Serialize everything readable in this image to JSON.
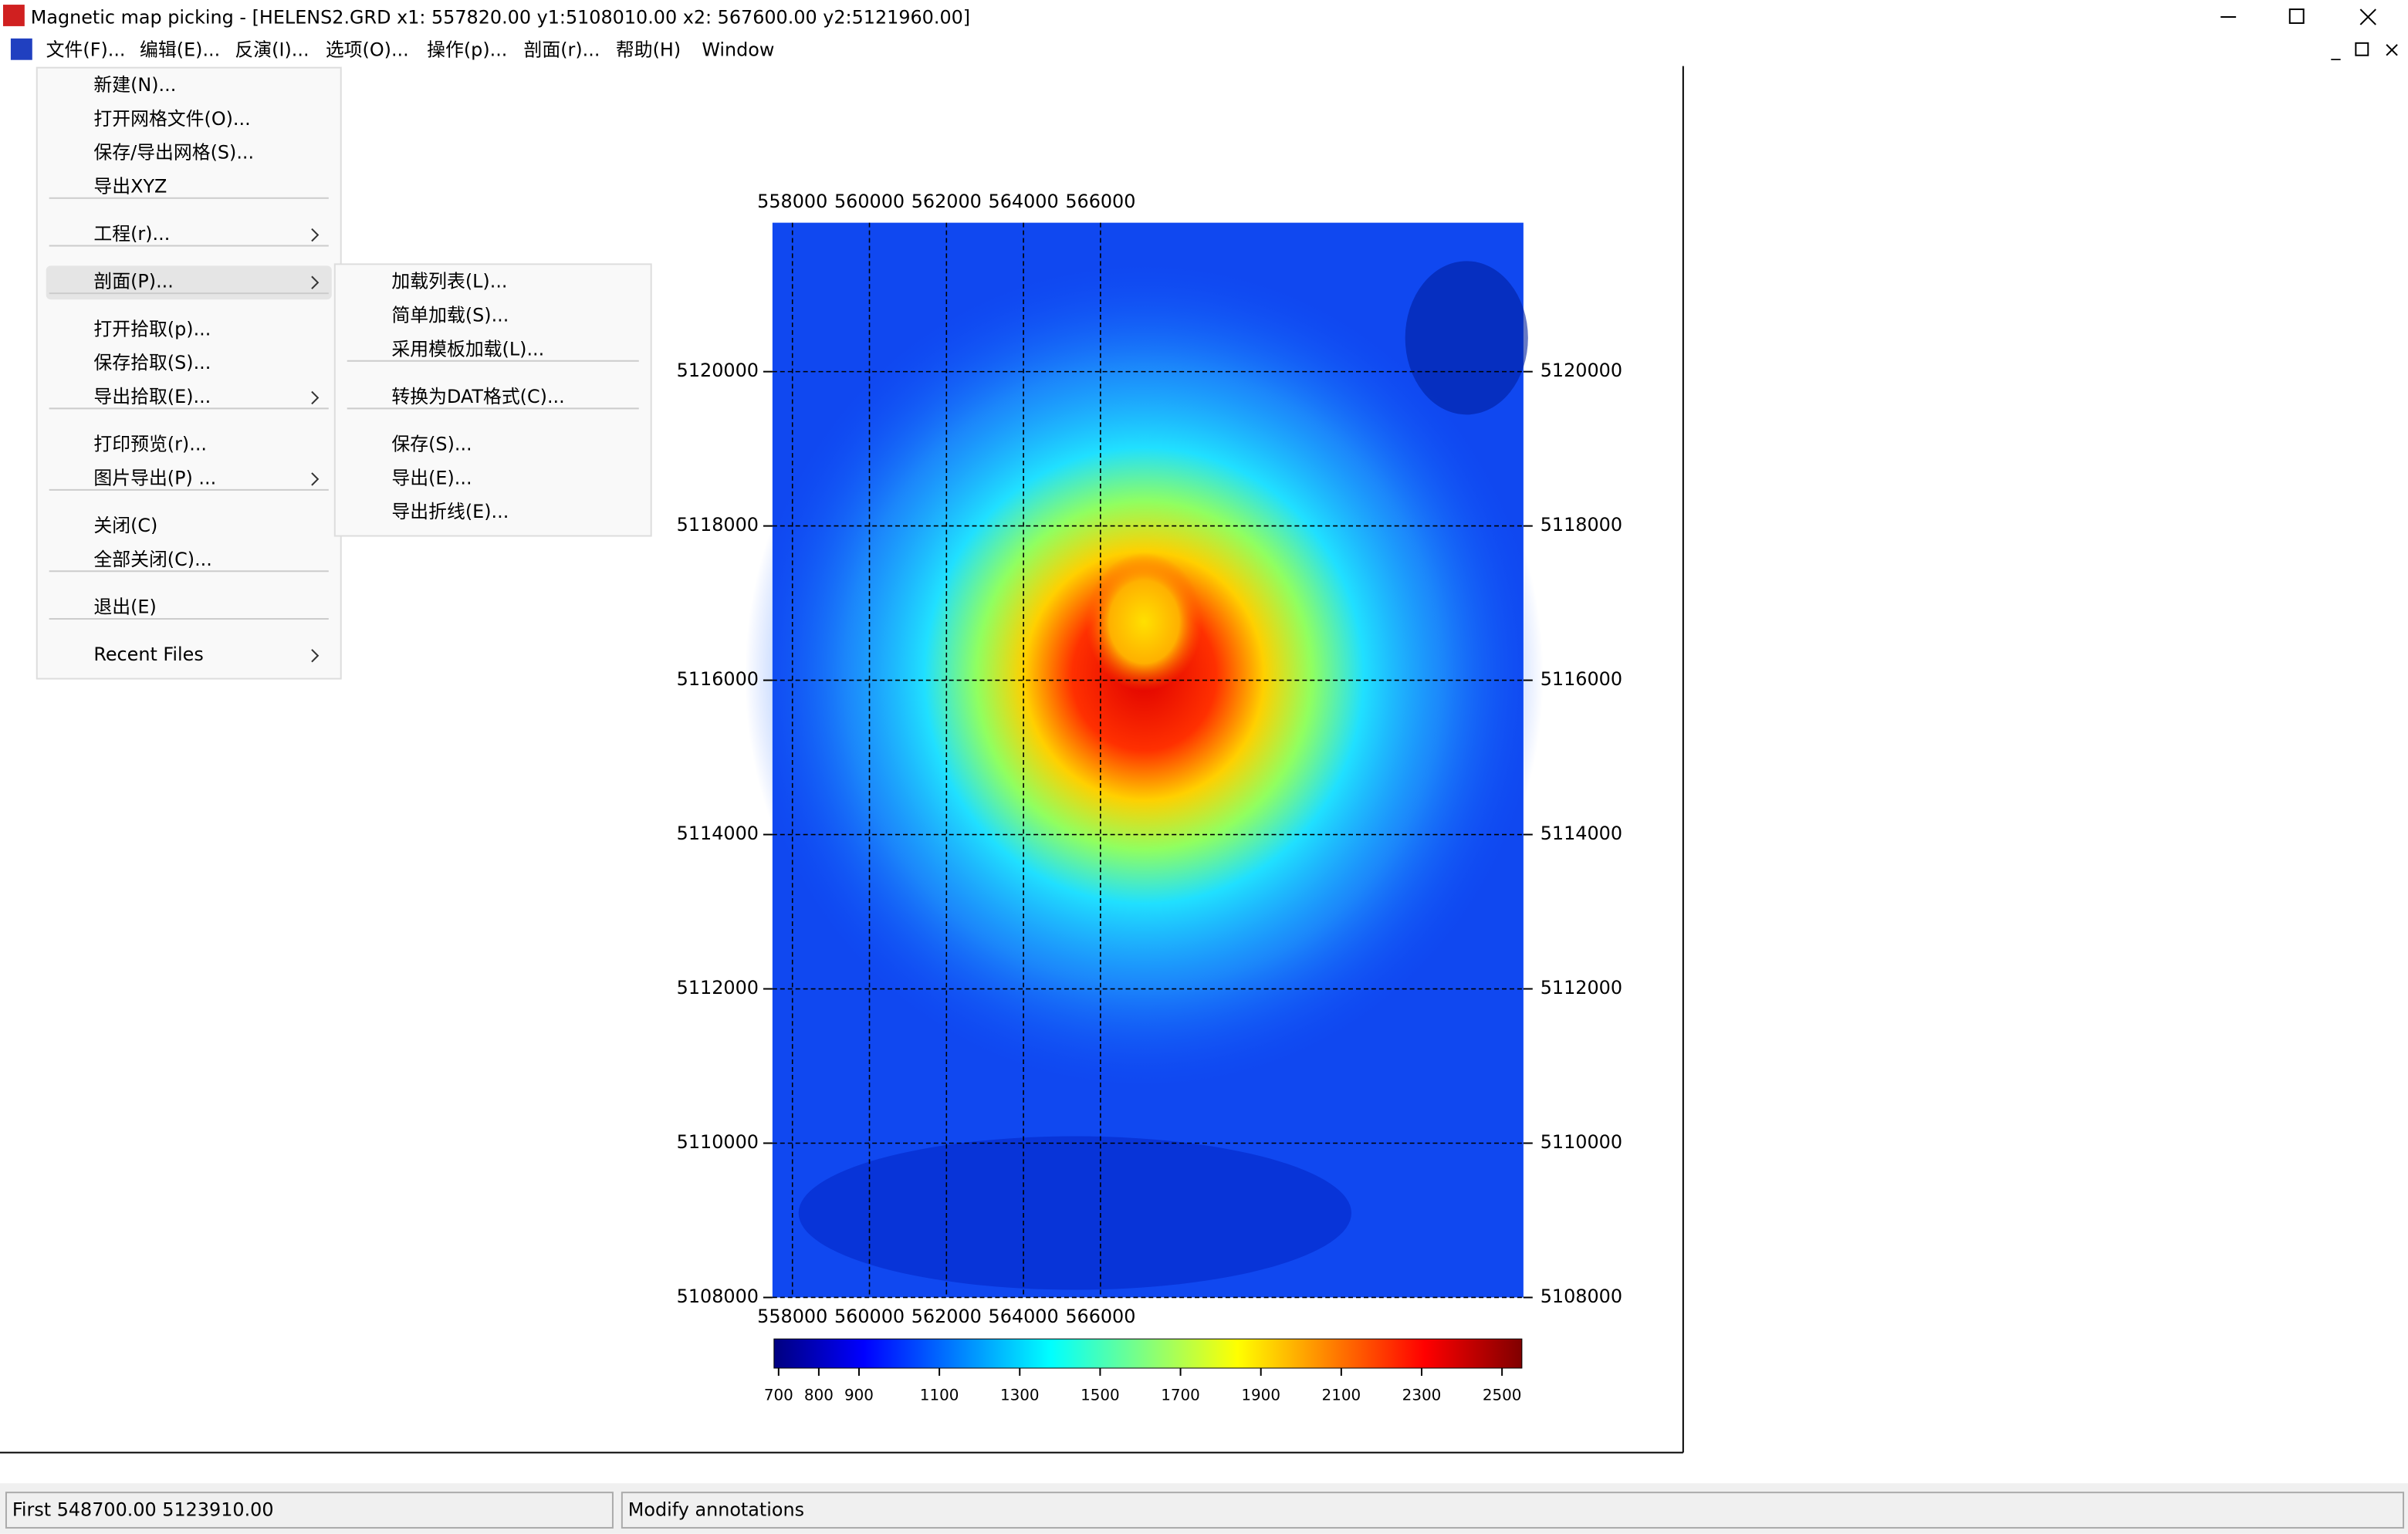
{
  "window": {
    "title": "Magnetic map picking - [HELENS2.GRD x1: 557820.00 y1:5108010.00 x2: 567600.00 y2:5121960.00]"
  },
  "menu_bar": [
    "文件(F)...",
    "编辑(E)...",
    "反演(I)...",
    "选项(O)...",
    "操作(p)...",
    "剖面(r)...",
    "帮助(H)",
    "Window"
  ],
  "file_menu": {
    "groups": [
      [
        "新建(N)...",
        "打开网格文件(O)...",
        "保存/导出网格(S)...",
        "导出XYZ"
      ],
      [
        "工程(r)..."
      ],
      [
        "剖面(P)..."
      ],
      [
        "打开拾取(p)...",
        "保存拾取(S)...",
        "导出拾取(E)..."
      ],
      [
        "打印预览(r)...",
        "图片导出(P) ..."
      ],
      [
        "关闭(C)",
        "全部关闭(C)..."
      ],
      [
        "退出(E)"
      ],
      [
        "Recent Files"
      ]
    ]
  },
  "profile_submenu": {
    "groups": [
      [
        "加载列表(L)...",
        "简单加载(S)...",
        "采用模板加载(L)..."
      ],
      [
        "转换为DAT格式(C)..."
      ],
      [
        "保存(S)...",
        "导出(E)...",
        "导出折线(E)..."
      ]
    ]
  },
  "map": {
    "x_ticks": [
      558000,
      560000,
      562000,
      564000,
      566000
    ],
    "y_ticks": [
      5120000,
      5118000,
      5116000,
      5114000,
      5112000,
      5110000,
      5108000
    ],
    "colorbar_ticks": [
      700,
      800,
      900,
      1100,
      1300,
      1500,
      1700,
      1900,
      2100,
      2300,
      2500
    ]
  },
  "status_bar": [
    "First 548700.00 5123910.00",
    "Modify annotations"
  ]
}
